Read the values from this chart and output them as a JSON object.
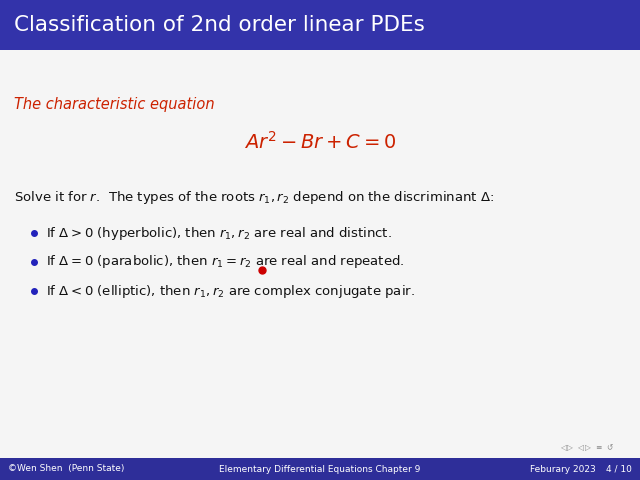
{
  "title": "Classification of 2nd order linear PDEs",
  "title_bg_color": "#3333AA",
  "title_text_color": "#FFFFFF",
  "slide_bg_color": "#F5F5F5",
  "footer_bg_color": "#2E2E99",
  "footer_text_color": "#FFFFFF",
  "footer_left": "©Wen Shen  (Penn State)",
  "footer_center": "Elementary Differential Equations Chapter 9",
  "footer_right": "Feburary 2023",
  "footer_page": "4 / 10",
  "red_color": "#CC2200",
  "body_text_color": "#111111",
  "characteristic_label": "The characteristic equation",
  "equation": "$Ar^2 - Br + C = 0$",
  "intro_text": "Solve it for $r$.  The types of the roots $r_1, r_2$ depend on the discriminant $\\Delta$:",
  "bullet1": "If $\\Delta > 0$ (hyperbolic), then $r_1, r_2$ are real and distinct.",
  "bullet2": "If $\\Delta = 0$ (parabolic), then $r_1 = r_2$ are real and repeated.",
  "bullet3": "If $\\Delta < 0$ (elliptic), then $r_1, r_2$ are complex conjugate pair.",
  "dot_color": "#CC0000",
  "bullet_dot_color": "#2222BB"
}
